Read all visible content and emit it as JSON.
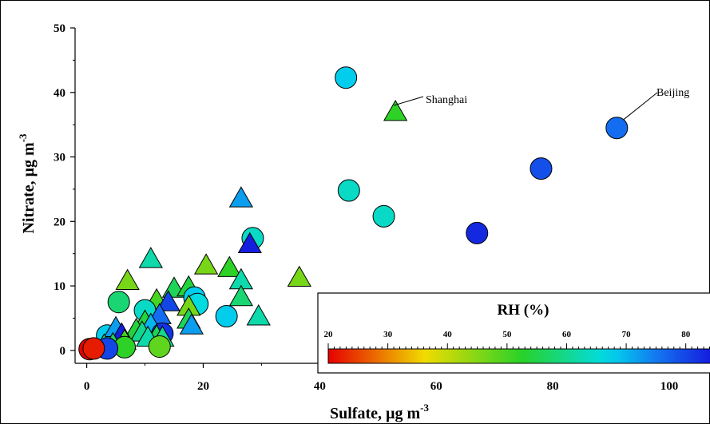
{
  "chart_data": {
    "type": "scatter",
    "xlabel": "Sulfate, µg m",
    "xlabel_sup": "-3",
    "ylabel": "Nitrate, µg m",
    "ylabel_sup": "-3",
    "xlim": [
      -2,
      107
    ],
    "ylim": [
      -2,
      50
    ],
    "xticks": [
      0,
      20,
      40,
      60,
      80,
      100
    ],
    "yticks": [
      0,
      10,
      20,
      30,
      40,
      50
    ],
    "colorbar": {
      "title": "RH (%)",
      "ticks": [
        20,
        30,
        40,
        50,
        60,
        70,
        80
      ],
      "range": [
        20,
        85
      ]
    },
    "annotations": [
      {
        "text": "Shanghai",
        "x": 53,
        "y": 37
      },
      {
        "text": "Beijing",
        "x": 91,
        "y": 34.5
      }
    ],
    "points": [
      {
        "x": 44.5,
        "y": 42.3,
        "rh": 68,
        "marker": "circle"
      },
      {
        "x": 53,
        "y": 37,
        "rh": 52,
        "marker": "triangle"
      },
      {
        "x": 91,
        "y": 34.5,
        "rh": 76,
        "marker": "circle"
      },
      {
        "x": 78,
        "y": 28.2,
        "rh": 79,
        "marker": "circle"
      },
      {
        "x": 45,
        "y": 24.8,
        "rh": 64,
        "marker": "circle"
      },
      {
        "x": 51,
        "y": 20.8,
        "rh": 64,
        "marker": "circle"
      },
      {
        "x": 67,
        "y": 18.2,
        "rh": 83,
        "marker": "circle"
      },
      {
        "x": 26.5,
        "y": 23.6,
        "rh": 72,
        "marker": "triangle"
      },
      {
        "x": 28.5,
        "y": 17.4,
        "rh": 64,
        "marker": "circle"
      },
      {
        "x": 28,
        "y": 16.5,
        "rh": 84,
        "marker": "triangle"
      },
      {
        "x": 36.5,
        "y": 11.3,
        "rh": 46,
        "marker": "triangle"
      },
      {
        "x": 11,
        "y": 14.2,
        "rh": 62,
        "marker": "triangle"
      },
      {
        "x": 20.5,
        "y": 13.2,
        "rh": 46,
        "marker": "triangle"
      },
      {
        "x": 24.5,
        "y": 12.8,
        "rh": 52,
        "marker": "triangle"
      },
      {
        "x": 26.5,
        "y": 10.9,
        "rh": 62,
        "marker": "triangle"
      },
      {
        "x": 7,
        "y": 10.8,
        "rh": 46,
        "marker": "triangle"
      },
      {
        "x": 15,
        "y": 9.6,
        "rh": 56,
        "marker": "triangle"
      },
      {
        "x": 17.5,
        "y": 9.8,
        "rh": 54,
        "marker": "triangle"
      },
      {
        "x": 26.5,
        "y": 8.3,
        "rh": 58,
        "marker": "triangle"
      },
      {
        "x": 18.5,
        "y": 8.2,
        "rh": 68,
        "marker": "circle"
      },
      {
        "x": 19,
        "y": 7.2,
        "rh": 66,
        "marker": "circle"
      },
      {
        "x": 5.5,
        "y": 7.5,
        "rh": 58,
        "marker": "circle"
      },
      {
        "x": 12,
        "y": 7.8,
        "rh": 50,
        "marker": "triangle"
      },
      {
        "x": 14,
        "y": 7.5,
        "rh": 80,
        "marker": "triangle"
      },
      {
        "x": 17.5,
        "y": 6.8,
        "rh": 46,
        "marker": "triangle"
      },
      {
        "x": 10,
        "y": 6.2,
        "rh": 64,
        "marker": "circle"
      },
      {
        "x": 12.5,
        "y": 5.5,
        "rh": 76,
        "marker": "triangle"
      },
      {
        "x": 24,
        "y": 5.3,
        "rh": 68,
        "marker": "circle"
      },
      {
        "x": 29.5,
        "y": 5.3,
        "rh": 62,
        "marker": "triangle"
      },
      {
        "x": 17.5,
        "y": 4.8,
        "rh": 56,
        "marker": "triangle"
      },
      {
        "x": 18,
        "y": 3.9,
        "rh": 72,
        "marker": "triangle"
      },
      {
        "x": 10,
        "y": 4.5,
        "rh": 54,
        "marker": "triangle"
      },
      {
        "x": 11,
        "y": 4.0,
        "rh": 70,
        "marker": "triangle"
      },
      {
        "x": 8.5,
        "y": 3.2,
        "rh": 54,
        "marker": "triangle"
      },
      {
        "x": 13,
        "y": 2.6,
        "rh": 82,
        "marker": "circle"
      },
      {
        "x": 9.5,
        "y": 2.8,
        "rh": 60,
        "marker": "triangle"
      },
      {
        "x": 12,
        "y": 2.2,
        "rh": 56,
        "marker": "triangle"
      },
      {
        "x": 3.5,
        "y": 2.3,
        "rh": 68,
        "marker": "circle"
      },
      {
        "x": 5,
        "y": 3.5,
        "rh": 72,
        "marker": "triangle"
      },
      {
        "x": 6,
        "y": 2.5,
        "rh": 84,
        "marker": "triangle"
      },
      {
        "x": 6.5,
        "y": 1.5,
        "rh": 50,
        "marker": "triangle"
      },
      {
        "x": 10.5,
        "y": 2.0,
        "rh": 62,
        "marker": "triangle"
      },
      {
        "x": 13,
        "y": 2.0,
        "rh": 60,
        "marker": "triangle"
      },
      {
        "x": 4.5,
        "y": 1.0,
        "rh": 56,
        "marker": "triangle"
      },
      {
        "x": 3,
        "y": 0.8,
        "rh": 58,
        "marker": "triangle"
      },
      {
        "x": 6.5,
        "y": 0.5,
        "rh": 52,
        "marker": "circle"
      },
      {
        "x": 12.5,
        "y": 0.6,
        "rh": 48,
        "marker": "circle"
      },
      {
        "x": 3.5,
        "y": 0.3,
        "rh": 80,
        "marker": "circle"
      },
      {
        "x": 0.5,
        "y": 0.2,
        "rh": 20,
        "marker": "circle"
      },
      {
        "x": 1.2,
        "y": 0.3,
        "rh": 22,
        "marker": "circle"
      }
    ]
  }
}
